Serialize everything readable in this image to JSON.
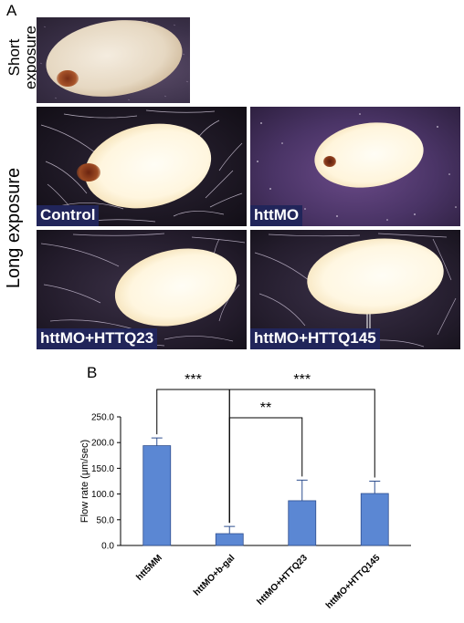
{
  "figure": {
    "panel_a_letter": "A",
    "panel_b_letter": "B",
    "short_exposure_label": "Short\nexposure",
    "long_exposure_label": "Long exposure",
    "images": {
      "short": {
        "label": ""
      },
      "control": {
        "label": "Control"
      },
      "httmo": {
        "label": "httMO"
      },
      "httq23": {
        "label": "httMO+HTTQ23"
      },
      "httq145": {
        "label": "httMO+HTTQ145"
      }
    }
  },
  "colors": {
    "bar_fill": "#5b87d3",
    "bar_edge": "#2f4f8f",
    "label_bg": "#21255a"
  },
  "chart_data": {
    "type": "bar",
    "categories": [
      "htt5MM",
      "httMO+b-gal",
      "httMO+HTTQ23",
      "httMO+HTTQ145"
    ],
    "values": [
      194,
      23,
      87,
      101
    ],
    "errors": [
      15,
      14,
      40,
      24
    ],
    "ylabel": "Flow rate (μm/sec)",
    "ylim": [
      0,
      250
    ],
    "yticks": [
      "0.0",
      "50.0",
      "100.0",
      "150.0",
      "200.0",
      "250.0"
    ],
    "significance": [
      {
        "from": 0,
        "to": 1,
        "label": "***"
      },
      {
        "from": 1,
        "to": 2,
        "label": "**"
      },
      {
        "from": 1,
        "to": 3,
        "label": "***"
      }
    ]
  }
}
